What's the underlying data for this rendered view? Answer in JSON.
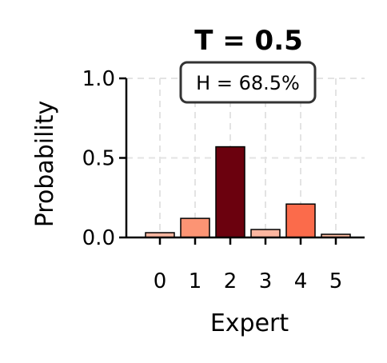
{
  "chart_data": {
    "type": "bar",
    "title": "T = 0.5",
    "xlabel": "Expert",
    "ylabel": "Probability",
    "categories": [
      "0",
      "1",
      "2",
      "3",
      "4",
      "5"
    ],
    "values": [
      0.03,
      0.12,
      0.57,
      0.05,
      0.21,
      0.02
    ],
    "ylim": [
      0,
      1.0
    ],
    "yticks": [
      "0.0",
      "0.5",
      "1.0"
    ],
    "grid": true,
    "annotation": "H = 68.5%",
    "colors": [
      "#fcb6a0",
      "#fc9474",
      "#6b010e",
      "#fcb6a0",
      "#fb6b4b",
      "#fcbba1"
    ]
  }
}
